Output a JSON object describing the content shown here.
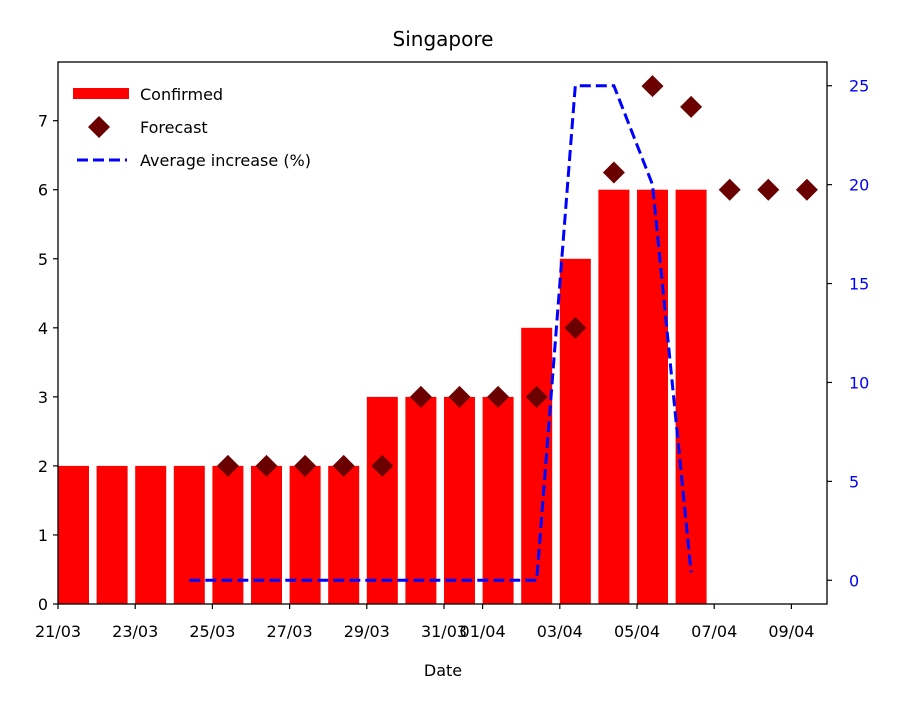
{
  "chart_data": {
    "type": "bar",
    "title": "Singapore",
    "xlabel": "Date",
    "ylabel": "",
    "ylabel_right": "",
    "x_tick_labels": [
      "21/03",
      "23/03",
      "25/03",
      "27/03",
      "29/03",
      "31/03",
      "01/04",
      "03/04",
      "05/04",
      "07/04",
      "09/04"
    ],
    "ylim": [
      0,
      7.85
    ],
    "y_ticks": [
      0,
      1,
      2,
      3,
      4,
      5,
      6,
      7
    ],
    "ylim_right": [
      -1.2,
      26.2
    ],
    "y_ticks_right": [
      0,
      5,
      10,
      15,
      20,
      25
    ],
    "legend_position": "top-left",
    "grid": false,
    "colors": {
      "confirmed": "#ff0000",
      "forecast": "#6b0000",
      "average": "#0000ff",
      "right_axis_ticks": "#0000ff"
    },
    "series": [
      {
        "name": "Confirmed",
        "type": "bar",
        "axis": "left",
        "x": [
          "21/03",
          "22/03",
          "23/03",
          "24/03",
          "25/03",
          "26/03",
          "27/03",
          "28/03",
          "29/03",
          "30/03",
          "31/03",
          "01/04",
          "02/04",
          "03/04",
          "04/04",
          "05/04",
          "06/04"
        ],
        "values": [
          2,
          2,
          2,
          2,
          2,
          2,
          2,
          2,
          3,
          3,
          3,
          3,
          4,
          5,
          6,
          6,
          6
        ]
      },
      {
        "name": "Forecast",
        "type": "scatter",
        "axis": "left",
        "marker": "diamond",
        "x": [
          "25/03",
          "26/03",
          "27/03",
          "28/03",
          "29/03",
          "30/03",
          "31/03",
          "01/04",
          "02/04",
          "03/04",
          "04/04",
          "05/04",
          "06/04",
          "07/04",
          "08/04",
          "09/04"
        ],
        "values": [
          2,
          2,
          2,
          2,
          2,
          3,
          3,
          3,
          3,
          4,
          6.25,
          7.5,
          7.2,
          6,
          6,
          6
        ]
      },
      {
        "name": "Average increase (%)",
        "type": "line",
        "axis": "right",
        "dash": "dashed",
        "x": [
          "24/03",
          "25/03",
          "26/03",
          "27/03",
          "28/03",
          "29/03",
          "30/03",
          "31/03",
          "01/04",
          "02/04",
          "03/04",
          "04/04",
          "05/04",
          "06/04"
        ],
        "values": [
          0,
          0,
          0,
          0,
          0,
          0,
          0,
          0,
          0,
          0,
          25,
          25,
          20,
          0.4
        ]
      }
    ]
  }
}
